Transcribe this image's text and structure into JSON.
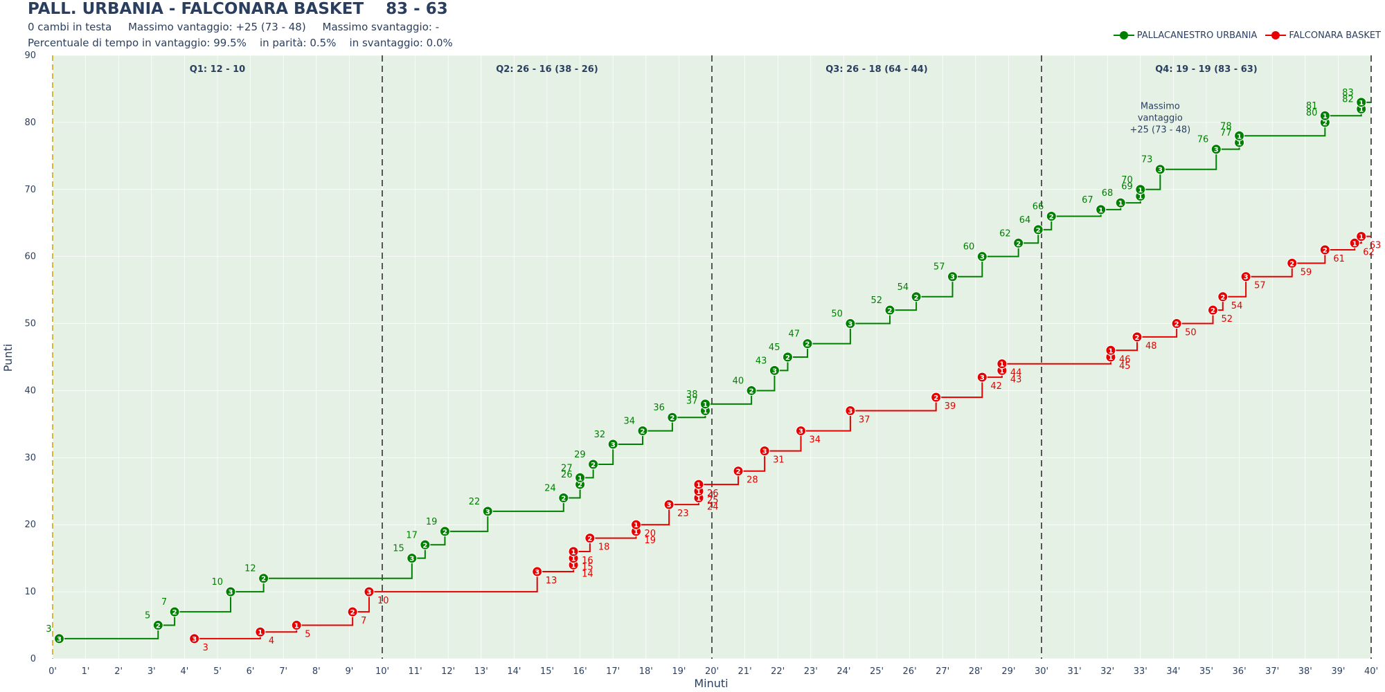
{
  "header": {
    "title": "PALL. URBANIA - FALCONARA BASKET    83 - 63",
    "line1": "0 cambi in testa     Massimo vantaggio: +25 (73 - 48)     Massimo svantaggio: -",
    "line2": "Percentuale di tempo in vantaggio: 99.5%    in parità: 0.5%    in svantaggio: 0.0%"
  },
  "chart_data": {
    "type": "line",
    "line_shape": "step",
    "xlabel": "Minuti",
    "ylabel": "Punti",
    "xlim": [
      0,
      40
    ],
    "ylim": [
      0,
      90
    ],
    "x_ticks": [
      "0'",
      "1'",
      "2'",
      "3'",
      "4'",
      "5'",
      "6'",
      "7'",
      "8'",
      "9'",
      "10'",
      "11'",
      "12'",
      "13'",
      "14'",
      "15'",
      "16'",
      "17'",
      "18'",
      "19'",
      "20'",
      "21'",
      "22'",
      "23'",
      "24'",
      "25'",
      "26'",
      "27'",
      "28'",
      "29'",
      "30'",
      "31'",
      "32'",
      "33'",
      "34'",
      "35'",
      "36'",
      "37'",
      "38'",
      "39'",
      "40'"
    ],
    "y_ticks": [
      0,
      10,
      20,
      30,
      40,
      50,
      60,
      70,
      80,
      90
    ],
    "grid": true,
    "legend_position": "top-right",
    "colors": {
      "home": "#008000",
      "away": "#e60000",
      "background": "#e4f1e4",
      "period_line": "#555555",
      "start_line": "#c8a000"
    },
    "periods": [
      {
        "label": "Q1: 12 - 10",
        "start": 0,
        "end": 10
      },
      {
        "label": "Q2: 26 - 16 (38 - 26)",
        "start": 10,
        "end": 20
      },
      {
        "label": "Q3: 26 - 18 (64 - 44)",
        "start": 20,
        "end": 30
      },
      {
        "label": "Q4: 19 - 19 (83 - 63)",
        "start": 30,
        "end": 40
      }
    ],
    "annotations": [
      {
        "lines": [
          "Massimo",
          "vantaggio",
          "+25 (73 - 48)"
        ],
        "x": 33.6,
        "y": 78.5
      }
    ],
    "series": [
      {
        "name": "PALLACANESTRO URBANIA",
        "color": "#008000",
        "events": [
          {
            "x": 0.2,
            "y": 3,
            "p": 3
          },
          {
            "x": 3.2,
            "y": 5,
            "p": 2
          },
          {
            "x": 3.7,
            "y": 7,
            "p": 2
          },
          {
            "x": 5.4,
            "y": 10,
            "p": 3
          },
          {
            "x": 6.4,
            "y": 12,
            "p": 2
          },
          {
            "x": 10.9,
            "y": 15,
            "p": 3
          },
          {
            "x": 11.3,
            "y": 17,
            "p": 2
          },
          {
            "x": 11.9,
            "y": 19,
            "p": 2
          },
          {
            "x": 13.2,
            "y": 22,
            "p": 3
          },
          {
            "x": 15.5,
            "y": 24,
            "p": 2
          },
          {
            "x": 16.0,
            "y": 26,
            "p": 2
          },
          {
            "x": 16.0,
            "y": 27,
            "p": 1
          },
          {
            "x": 16.4,
            "y": 29,
            "p": 2
          },
          {
            "x": 17.0,
            "y": 32,
            "p": 3
          },
          {
            "x": 17.9,
            "y": 34,
            "p": 2
          },
          {
            "x": 18.8,
            "y": 36,
            "p": 2
          },
          {
            "x": 19.8,
            "y": 37,
            "p": 1
          },
          {
            "x": 19.8,
            "y": 38,
            "p": 1
          },
          {
            "x": 21.2,
            "y": 40,
            "p": 2
          },
          {
            "x": 21.9,
            "y": 43,
            "p": 3
          },
          {
            "x": 22.3,
            "y": 45,
            "p": 2
          },
          {
            "x": 22.9,
            "y": 47,
            "p": 2
          },
          {
            "x": 24.2,
            "y": 50,
            "p": 3
          },
          {
            "x": 25.4,
            "y": 52,
            "p": 2
          },
          {
            "x": 26.2,
            "y": 54,
            "p": 2
          },
          {
            "x": 27.3,
            "y": 57,
            "p": 3
          },
          {
            "x": 28.2,
            "y": 60,
            "p": 3
          },
          {
            "x": 29.3,
            "y": 62,
            "p": 2
          },
          {
            "x": 29.9,
            "y": 64,
            "p": 2
          },
          {
            "x": 30.3,
            "y": 66,
            "p": 2
          },
          {
            "x": 31.8,
            "y": 67,
            "p": 1
          },
          {
            "x": 32.4,
            "y": 68,
            "p": 1
          },
          {
            "x": 33.0,
            "y": 69,
            "p": 1
          },
          {
            "x": 33.0,
            "y": 70,
            "p": 1
          },
          {
            "x": 33.6,
            "y": 73,
            "p": 3
          },
          {
            "x": 35.3,
            "y": 76,
            "p": 3
          },
          {
            "x": 36.0,
            "y": 77,
            "p": 1
          },
          {
            "x": 36.0,
            "y": 78,
            "p": 1
          },
          {
            "x": 38.6,
            "y": 80,
            "p": 2
          },
          {
            "x": 38.6,
            "y": 81,
            "p": 1
          },
          {
            "x": 39.7,
            "y": 82,
            "p": 1
          },
          {
            "x": 39.7,
            "y": 83,
            "p": 1
          }
        ]
      },
      {
        "name": "FALCONARA BASKET",
        "color": "#e60000",
        "events": [
          {
            "x": 4.3,
            "y": 3,
            "p": 3
          },
          {
            "x": 6.3,
            "y": 4,
            "p": 1
          },
          {
            "x": 7.4,
            "y": 5,
            "p": 1
          },
          {
            "x": 9.1,
            "y": 7,
            "p": 2
          },
          {
            "x": 9.6,
            "y": 10,
            "p": 3
          },
          {
            "x": 14.7,
            "y": 13,
            "p": 3
          },
          {
            "x": 15.8,
            "y": 14,
            "p": 1
          },
          {
            "x": 15.8,
            "y": 15,
            "p": 1
          },
          {
            "x": 15.8,
            "y": 16,
            "p": 1
          },
          {
            "x": 16.3,
            "y": 18,
            "p": 2
          },
          {
            "x": 17.7,
            "y": 19,
            "p": 1
          },
          {
            "x": 17.7,
            "y": 20,
            "p": 1
          },
          {
            "x": 18.7,
            "y": 23,
            "p": 3
          },
          {
            "x": 19.6,
            "y": 24,
            "p": 1
          },
          {
            "x": 19.6,
            "y": 25,
            "p": 1
          },
          {
            "x": 19.6,
            "y": 26,
            "p": 1
          },
          {
            "x": 20.8,
            "y": 28,
            "p": 2
          },
          {
            "x": 21.6,
            "y": 31,
            "p": 3
          },
          {
            "x": 22.7,
            "y": 34,
            "p": 3
          },
          {
            "x": 24.2,
            "y": 37,
            "p": 3
          },
          {
            "x": 26.8,
            "y": 39,
            "p": 2
          },
          {
            "x": 28.2,
            "y": 42,
            "p": 3
          },
          {
            "x": 28.8,
            "y": 43,
            "p": 1
          },
          {
            "x": 28.8,
            "y": 44,
            "p": 1
          },
          {
            "x": 32.1,
            "y": 45,
            "p": 1
          },
          {
            "x": 32.1,
            "y": 46,
            "p": 1
          },
          {
            "x": 32.9,
            "y": 48,
            "p": 2
          },
          {
            "x": 34.1,
            "y": 50,
            "p": 2
          },
          {
            "x": 35.2,
            "y": 52,
            "p": 2
          },
          {
            "x": 35.5,
            "y": 54,
            "p": 2
          },
          {
            "x": 36.2,
            "y": 57,
            "p": 3
          },
          {
            "x": 37.6,
            "y": 59,
            "p": 2
          },
          {
            "x": 38.6,
            "y": 61,
            "p": 2
          },
          {
            "x": 39.5,
            "y": 62,
            "p": 1
          },
          {
            "x": 39.7,
            "y": 63,
            "p": 1
          }
        ]
      }
    ]
  }
}
